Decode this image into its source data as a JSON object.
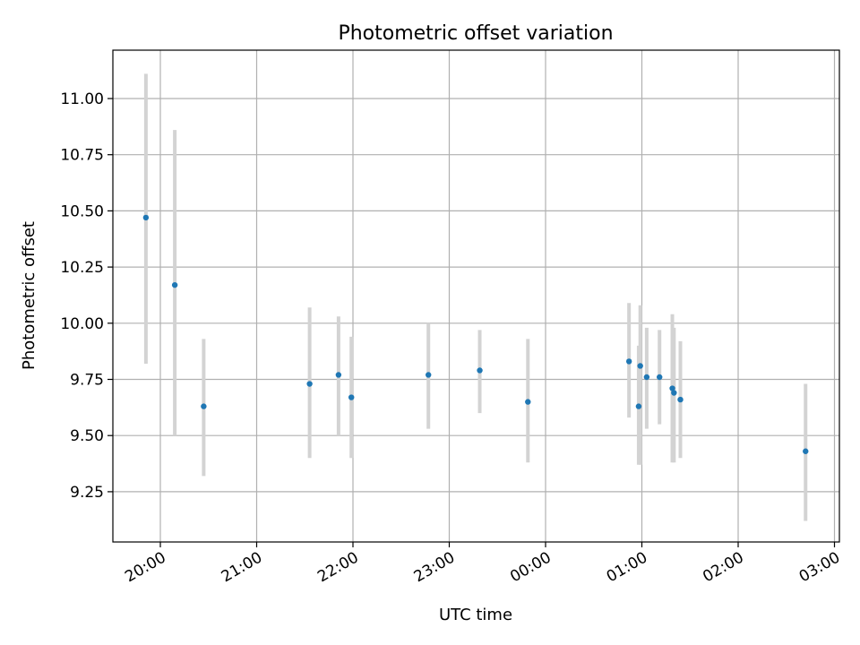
{
  "chart_data": {
    "type": "scatter",
    "title": "Photometric offset variation",
    "xlabel": "UTC time",
    "ylabel": "Photometric offset",
    "grid": true,
    "legend": "none",
    "marker_color": "#1f77b4",
    "errorbar_color": "#d3d3d3",
    "x_ticks": [
      "20:00",
      "21:00",
      "22:00",
      "23:00",
      "00:00",
      "01:00",
      "02:00",
      "03:00"
    ],
    "y_ticks": [
      "9.25",
      "9.50",
      "9.75",
      "10.00",
      "10.25",
      "10.50",
      "10.75",
      "11.00"
    ],
    "points": [
      {
        "time": "19:51",
        "y": 10.47,
        "low": 9.82,
        "high": 11.11
      },
      {
        "time": "20:09",
        "y": 10.17,
        "low": 9.5,
        "high": 10.86
      },
      {
        "time": "20:27",
        "y": 9.63,
        "low": 9.32,
        "high": 9.93
      },
      {
        "time": "21:33",
        "y": 9.73,
        "low": 9.4,
        "high": 10.07
      },
      {
        "time": "21:51",
        "y": 9.77,
        "low": 9.5,
        "high": 10.03
      },
      {
        "time": "21:59",
        "y": 9.67,
        "low": 9.4,
        "high": 9.94
      },
      {
        "time": "22:47",
        "y": 9.77,
        "low": 9.53,
        "high": 10.0
      },
      {
        "time": "23:19",
        "y": 9.79,
        "low": 9.6,
        "high": 9.97
      },
      {
        "time": "23:49",
        "y": 9.65,
        "low": 9.38,
        "high": 9.93
      },
      {
        "time": "00:52",
        "y": 9.83,
        "low": 9.58,
        "high": 10.09
      },
      {
        "time": "00:58",
        "y": 9.63,
        "low": 9.37,
        "high": 9.9
      },
      {
        "time": "00:59",
        "y": 9.81,
        "low": 9.37,
        "high": 10.08
      },
      {
        "time": "01:03",
        "y": 9.76,
        "low": 9.53,
        "high": 9.98
      },
      {
        "time": "01:11",
        "y": 9.76,
        "low": 9.55,
        "high": 9.97
      },
      {
        "time": "01:19",
        "y": 9.71,
        "low": 9.38,
        "high": 10.04
      },
      {
        "time": "01:20",
        "y": 9.69,
        "low": 9.38,
        "high": 9.98
      },
      {
        "time": "01:24",
        "y": 9.66,
        "low": 9.4,
        "high": 9.92
      },
      {
        "time": "02:42",
        "y": 9.43,
        "low": 9.12,
        "high": 9.73
      }
    ]
  }
}
